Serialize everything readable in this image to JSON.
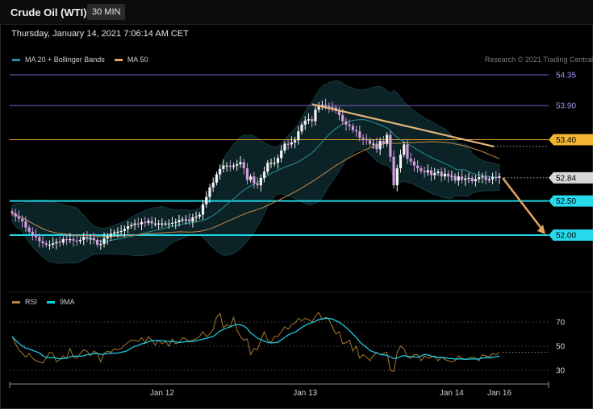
{
  "header": {
    "title": "Crude Oil (WTI)",
    "timeframe": "30 MIN",
    "timestamp": "Thursday, January 14, 2021 7:06:14 AM CET"
  },
  "legend": {
    "main": [
      {
        "label": "MA 20 + Bollinger Bands",
        "color": "#2a8f98"
      },
      {
        "label": "MA 50",
        "color": "#e0a563"
      }
    ],
    "rsi": [
      {
        "label": "RSI",
        "color": "#b0853d"
      },
      {
        "label": "9MA",
        "color": "#00d5e8"
      }
    ]
  },
  "copyright": "Research © 2021 Trading Central",
  "chart_data": [
    {
      "type": "candlestick",
      "series": [
        {
          "name": "MA 20 + Bollinger Bands",
          "color": "#2a8f98"
        },
        {
          "name": "MA 50",
          "color": "#e0a563"
        }
      ],
      "ylim": [
        51.65,
        54.45
      ],
      "levels": [
        {
          "value": 54.35,
          "label": "54.35",
          "color": "#7a5cc4",
          "label_color": "#a98ff0",
          "style": "line"
        },
        {
          "value": 53.9,
          "label": "53.90",
          "color": "#7a5cc4",
          "label_color": "#a98ff0",
          "style": "line"
        },
        {
          "value": 53.4,
          "label": "53.40",
          "color": "#e2a22a",
          "label_color": "#000000",
          "box": "#f2b431",
          "style": "line"
        },
        {
          "value": 52.84,
          "label": "52.84",
          "color": "#bbbbbb",
          "label_color": "#000000",
          "box": "#d8d8d8",
          "style": "dotted"
        },
        {
          "value": 52.5,
          "label": "52.50",
          "color": "#1fd6e6",
          "label_color": "#000000",
          "box": "#27d9ea",
          "style": "line"
        },
        {
          "value": 52.0,
          "label": "52.00",
          "color": "#1fd6e6",
          "label_color": "#000000",
          "box": "#27d9ea",
          "style": "line"
        }
      ],
      "x_ticks": [
        {
          "label": "Jan 12",
          "index": 44
        },
        {
          "label": "Jan 13",
          "index": 86
        },
        {
          "label": "Jan 14",
          "index": 129
        },
        {
          "label": "Jan 16",
          "index": 143
        }
      ],
      "closes": [
        52.32,
        52.27,
        52.24,
        52.2,
        52.11,
        52.05,
        52.0,
        51.97,
        51.91,
        51.88,
        51.86,
        51.86,
        51.88,
        51.9,
        51.89,
        51.94,
        51.93,
        51.94,
        51.92,
        51.91,
        51.93,
        51.97,
        51.95,
        51.96,
        51.93,
        51.86,
        51.87,
        51.95,
        51.98,
        52.02,
        52.04,
        52.05,
        52.06,
        52.09,
        52.13,
        52.15,
        52.17,
        52.16,
        52.19,
        52.18,
        52.21,
        52.17,
        52.17,
        52.17,
        52.17,
        52.17,
        52.17,
        52.18,
        52.19,
        52.22,
        52.23,
        52.23,
        52.2,
        52.26,
        52.27,
        52.3,
        52.45,
        52.56,
        52.7,
        52.77,
        52.89,
        52.97,
        53.02,
        53.02,
        53.0,
        53.02,
        53.04,
        53.07,
        52.98,
        52.81,
        52.86,
        52.76,
        52.73,
        52.84,
        52.93,
        53.06,
        53.06,
        53.06,
        53.13,
        53.24,
        53.34,
        53.33,
        53.36,
        53.39,
        53.52,
        53.62,
        53.68,
        53.7,
        53.67,
        53.84,
        53.91,
        53.91,
        53.89,
        53.88,
        53.87,
        53.82,
        53.76,
        53.67,
        53.62,
        53.6,
        53.54,
        53.52,
        53.43,
        53.41,
        53.39,
        53.34,
        53.34,
        53.26,
        53.38,
        53.34,
        53.47,
        53.15,
        52.73,
        52.98,
        53.18,
        53.33,
        53.12,
        53.08,
        53.02,
        52.98,
        52.94,
        52.92,
        52.95,
        52.88,
        52.91,
        52.93,
        52.86,
        52.9,
        52.86,
        52.87,
        52.8,
        52.86,
        52.81,
        52.83,
        52.84,
        52.79,
        52.82,
        52.85,
        52.86,
        52.81,
        52.82,
        52.85,
        52.84,
        52.86
      ],
      "rsi": {
        "ylim": [
          20,
          80
        ],
        "ticks": [
          70,
          50,
          30
        ],
        "current": 45,
        "values": [
          58,
          52,
          47,
          44,
          41,
          44,
          40,
          38,
          37,
          36,
          40,
          45,
          44,
          37,
          39,
          42,
          40,
          48,
          41,
          40,
          44,
          47,
          46,
          42,
          46,
          44,
          37,
          44,
          46,
          45,
          48,
          47,
          48,
          51,
          53,
          55,
          55,
          54,
          57,
          53,
          58,
          55,
          51,
          55,
          52,
          54,
          50,
          56,
          52,
          53,
          57,
          56,
          54,
          55,
          56,
          58,
          62,
          58,
          60,
          64,
          74,
          77,
          65,
          68,
          66,
          74,
          63,
          58,
          55,
          56,
          43,
          48,
          47,
          55,
          62,
          55,
          53,
          58,
          58,
          62,
          66,
          64,
          68,
          69,
          73,
          71,
          73,
          72,
          70,
          75,
          78,
          72,
          74,
          72,
          66,
          60,
          62,
          52,
          53,
          55,
          46,
          50,
          40,
          43,
          41,
          38,
          42,
          45,
          43,
          44,
          45,
          30,
          29,
          45,
          50,
          48,
          41,
          40,
          43,
          43,
          38,
          42,
          40,
          41,
          42,
          38,
          41,
          39,
          38,
          37,
          38,
          42,
          40,
          39,
          40,
          41,
          40,
          38,
          43,
          42,
          41,
          44,
          43,
          45
        ]
      }
    }
  ]
}
